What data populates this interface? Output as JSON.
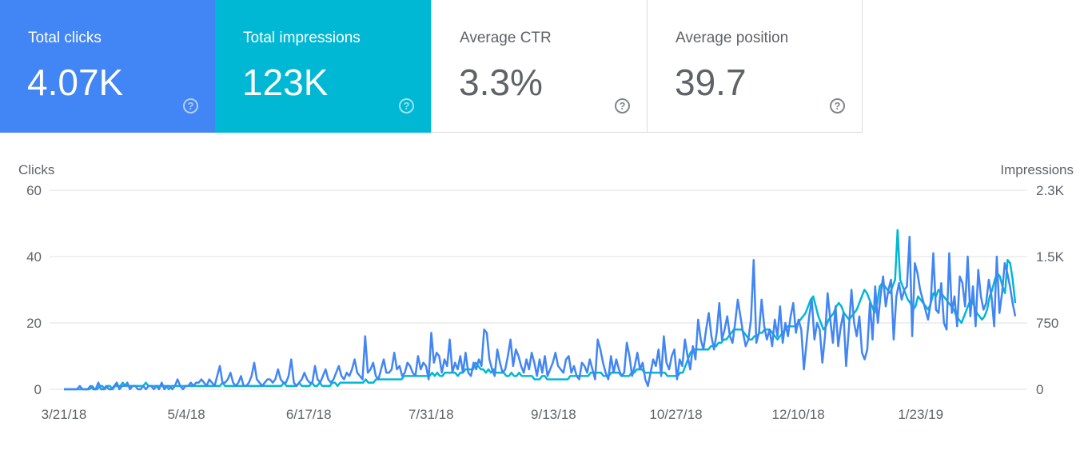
{
  "cards": [
    {
      "label": "Total clicks",
      "value": "4.07K"
    },
    {
      "label": "Total impressions",
      "value": "123K"
    },
    {
      "label": "Average CTR",
      "value": "3.3%"
    },
    {
      "label": "Average position",
      "value": "39.7"
    }
  ],
  "help_glyph": "?",
  "colors": {
    "clicks": "#4285f4",
    "impressions": "#00b8d4",
    "grid": "#e0e0e0",
    "text": "#5f6368"
  },
  "chart_data": {
    "type": "line",
    "title": "",
    "left_axis_title": "Clicks",
    "right_axis_title": "Impressions",
    "left_ylim": [
      0,
      60
    ],
    "right_ylim": [
      0,
      2250
    ],
    "left_ticks": [
      "0",
      "20",
      "40",
      "60"
    ],
    "right_ticks": [
      "0",
      "750",
      "1.5K",
      "2.3K"
    ],
    "x_tick_labels": [
      "3/21/18",
      "5/4/18",
      "6/17/18",
      "7/31/18",
      "9/13/18",
      "10/27/18",
      "12/10/18",
      "1/23/19"
    ],
    "date_start": "3/21/18",
    "date_end": "2/26/19",
    "grid": true,
    "series": [
      {
        "name": "Clicks",
        "axis": "left",
        "values": [
          0,
          0,
          0,
          0,
          0,
          0,
          1,
          0,
          0,
          0,
          1,
          0,
          0,
          2,
          0,
          0,
          1,
          0,
          0,
          1,
          2,
          0,
          1,
          1,
          2,
          0,
          1,
          1,
          0,
          0,
          1,
          0,
          1,
          1,
          0,
          1,
          0,
          2,
          0,
          1,
          1,
          0,
          1,
          3,
          1,
          0,
          1,
          1,
          2,
          1,
          2,
          2,
          3,
          2,
          1,
          3,
          2,
          1,
          4,
          7,
          2,
          2,
          3,
          5,
          2,
          1,
          2,
          4,
          1,
          1,
          2,
          4,
          8,
          3,
          2,
          1,
          2,
          3,
          3,
          2,
          3,
          6,
          3,
          2,
          2,
          4,
          9,
          2,
          1,
          2,
          3,
          5,
          3,
          2,
          2,
          7,
          3,
          2,
          4,
          6,
          3,
          2,
          3,
          5,
          7,
          4,
          3,
          5,
          4,
          6,
          9,
          5,
          4,
          3,
          16,
          5,
          6,
          8,
          4,
          3,
          6,
          9,
          5,
          5,
          6,
          11,
          6,
          7,
          4,
          5,
          8,
          7,
          5,
          4,
          10,
          6,
          8,
          7,
          3,
          17,
          8,
          11,
          10,
          5,
          9,
          7,
          15,
          5,
          8,
          6,
          10,
          5,
          11,
          5,
          4,
          8,
          6,
          9,
          7,
          18,
          17,
          9,
          6,
          4,
          12,
          8,
          5,
          6,
          10,
          15,
          7,
          12,
          10,
          7,
          5,
          9,
          6,
          11,
          8,
          4,
          9,
          5,
          10,
          4,
          6,
          8,
          11,
          7,
          6,
          5,
          9,
          10,
          5,
          7,
          4,
          3,
          8,
          7,
          5,
          9,
          6,
          3,
          15,
          12,
          8,
          5,
          3,
          10,
          5,
          9,
          6,
          4,
          5,
          14,
          10,
          4,
          7,
          11,
          6,
          8,
          3,
          1,
          5,
          9,
          7,
          12,
          4,
          16,
          8,
          6,
          10,
          12,
          3,
          9,
          7,
          15,
          10,
          6,
          13,
          9,
          21,
          15,
          12,
          18,
          23,
          16,
          12,
          17,
          26,
          15,
          18,
          22,
          16,
          14,
          20,
          27,
          22,
          17,
          13,
          15,
          21,
          39,
          14,
          17,
          27,
          19,
          15,
          18,
          13,
          21,
          16,
          25,
          14,
          20,
          16,
          22,
          26,
          17,
          21,
          18,
          6,
          14,
          22,
          27,
          15,
          20,
          18,
          8,
          16,
          29,
          21,
          14,
          25,
          13,
          19,
          23,
          7,
          18,
          30,
          20,
          16,
          22,
          11,
          9,
          12,
          26,
          15,
          31,
          20,
          28,
          34,
          25,
          30,
          33,
          15,
          28,
          32,
          27,
          30,
          31,
          46,
          16,
          38,
          35,
          30,
          27,
          24,
          21,
          26,
          41,
          24,
          23,
          32,
          20,
          18,
          41,
          23,
          28,
          19,
          34,
          32,
          25,
          40,
          22,
          31,
          19,
          36,
          28,
          24,
          26,
          33,
          28,
          19,
          40,
          23,
          29,
          38,
          35,
          31,
          26,
          22
        ]
      },
      {
        "name": "Impressions",
        "axis": "left",
        "values": [
          0,
          0,
          0,
          0,
          0,
          0,
          0,
          0,
          0,
          0,
          0,
          1,
          0,
          0,
          1,
          1,
          0,
          1,
          1,
          0,
          1,
          1,
          1,
          2,
          1,
          1,
          1,
          1,
          1,
          1,
          1,
          1,
          2,
          1,
          1,
          1,
          1,
          1,
          1,
          1,
          1,
          0,
          1,
          1,
          1,
          1,
          1,
          1,
          1,
          1,
          1,
          1,
          1,
          1,
          1,
          1,
          1,
          1,
          1,
          1,
          1,
          1,
          2,
          1,
          1,
          1,
          1,
          1,
          1,
          1,
          1,
          1,
          1,
          1,
          1,
          1,
          1,
          1,
          1,
          1,
          1,
          1,
          1,
          1,
          1,
          1,
          2,
          1,
          1,
          1,
          1,
          1,
          2,
          1,
          1,
          1,
          1,
          2,
          1,
          1,
          2,
          1,
          1,
          1,
          1,
          2,
          2,
          1,
          2,
          2,
          2,
          2,
          2,
          2,
          2,
          2,
          2,
          2,
          3,
          2,
          2,
          2,
          3,
          3,
          3,
          3,
          3,
          3,
          3,
          3,
          3,
          3,
          3,
          4,
          4,
          4,
          4,
          4,
          4,
          4,
          4,
          4,
          4,
          4,
          5,
          4,
          5,
          4,
          4,
          5,
          5,
          5,
          5,
          5,
          4,
          5,
          5,
          6,
          6,
          6,
          6,
          8,
          7,
          6,
          6,
          5,
          6,
          5,
          6,
          5,
          5,
          5,
          5,
          4,
          4,
          5,
          4,
          4,
          5,
          4,
          4,
          4,
          4,
          4,
          3,
          3,
          3,
          4,
          4,
          3,
          3,
          3,
          3,
          3,
          3,
          3,
          3,
          3,
          4,
          4,
          4,
          4,
          4,
          4,
          4,
          4,
          5,
          5,
          5,
          5,
          5,
          4,
          4,
          4,
          5,
          5,
          5,
          5,
          4,
          4,
          4,
          4,
          5,
          5,
          6,
          6,
          6,
          5,
          5,
          5,
          5,
          5,
          5,
          5,
          5,
          5,
          4,
          4,
          4,
          4,
          4,
          5,
          5,
          7,
          9,
          11,
          12,
          12,
          12,
          12,
          12,
          12,
          12,
          13,
          13,
          13,
          14,
          14,
          15,
          15,
          16,
          17,
          18,
          18,
          18,
          18,
          17,
          16,
          15,
          15,
          16,
          16,
          17,
          17,
          18,
          18,
          18,
          17,
          16,
          15,
          16,
          17,
          18,
          19,
          19,
          19,
          19,
          20,
          21,
          22,
          23,
          25,
          27,
          28,
          25,
          22,
          20,
          18,
          19,
          21,
          22,
          23,
          25,
          26,
          25,
          23,
          22,
          21,
          22,
          23,
          24,
          26,
          28,
          30,
          29,
          27,
          25,
          23,
          26,
          31,
          32,
          31,
          30,
          29,
          31,
          33,
          48,
          33,
          31,
          29,
          27,
          26,
          24,
          25,
          28,
          27,
          26,
          25,
          24,
          26,
          29,
          28,
          30,
          29,
          28,
          27,
          26,
          25,
          24,
          22,
          21,
          20,
          22,
          24,
          26,
          27,
          25,
          23,
          22,
          21,
          22,
          24,
          28,
          30,
          33,
          35,
          34,
          31,
          29,
          39,
          38,
          33,
          26
        ]
      }
    ]
  }
}
